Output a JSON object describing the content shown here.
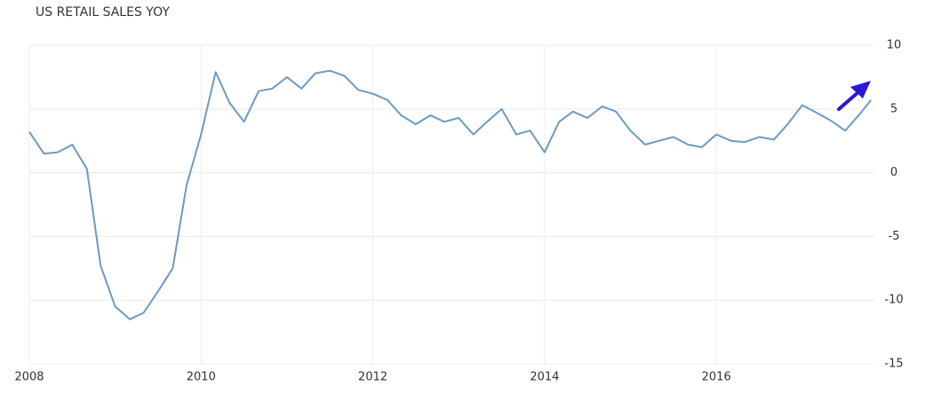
{
  "chart_data": {
    "type": "line",
    "title": "US RETAIL SALES YOY",
    "x": [
      2008,
      2008.17,
      2008.33,
      2008.5,
      2008.67,
      2008.83,
      2009,
      2009.17,
      2009.33,
      2009.5,
      2009.67,
      2009.83,
      2010,
      2010.17,
      2010.33,
      2010.5,
      2010.67,
      2010.83,
      2011,
      2011.17,
      2011.33,
      2011.5,
      2011.67,
      2011.83,
      2012,
      2012.17,
      2012.33,
      2012.5,
      2012.67,
      2012.83,
      2013,
      2013.17,
      2013.33,
      2013.5,
      2013.67,
      2013.83,
      2014,
      2014.17,
      2014.33,
      2014.5,
      2014.67,
      2014.83,
      2015,
      2015.17,
      2015.33,
      2015.5,
      2015.67,
      2015.83,
      2016,
      2016.17,
      2016.33,
      2016.5,
      2016.67,
      2016.83,
      2017,
      2017.17,
      2017.33,
      2017.5,
      2017.67,
      2017.8
    ],
    "series": [
      {
        "color": "#6a9bc3",
        "values": [
          3.2,
          1.5,
          1.6,
          2.2,
          0.3,
          -7.3,
          -10.5,
          -11.5,
          -11,
          -9.3,
          -7.5,
          -1,
          3,
          7.9,
          5.5,
          4,
          6.4,
          6.6,
          7.5,
          6.6,
          7.8,
          8,
          7.6,
          6.5,
          6.2,
          5.7,
          4.5,
          3.8,
          4.5,
          4,
          4.3,
          3,
          4,
          5,
          3,
          3.3,
          1.6,
          4,
          4.8,
          4.3,
          5.2,
          4.8,
          3.3,
          2.2,
          2.5,
          2.8,
          2.2,
          2,
          3,
          2.5,
          2.4,
          2.8,
          2.6,
          3.8,
          5.3,
          4.7,
          4.1,
          3.3,
          4.6,
          5.7
        ]
      }
    ],
    "xlim": [
      2008,
      2017.85
    ],
    "xticks": [
      2008,
      2010,
      2012,
      2014,
      2016
    ],
    "ylim": [
      -15,
      10
    ],
    "yticks": [
      -15,
      -10,
      -5,
      0,
      5,
      10
    ],
    "grid": true
  }
}
